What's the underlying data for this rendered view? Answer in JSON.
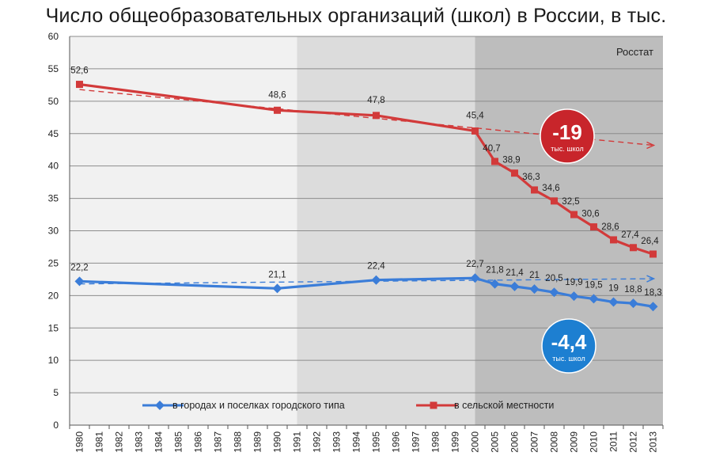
{
  "chart_data": {
    "type": "line",
    "title": "Число общеобразовательных организаций (школ) в России, в тыс.",
    "source": "Росстат",
    "ylim": [
      0,
      60
    ],
    "yticks": [
      0,
      5,
      10,
      15,
      20,
      25,
      30,
      35,
      40,
      45,
      50,
      55,
      60
    ],
    "categories": [
      "1980",
      "1981",
      "1982",
      "1983",
      "1984",
      "1985",
      "1986",
      "1987",
      "1988",
      "1989",
      "1990",
      "1991",
      "1992",
      "1993",
      "1994",
      "1995",
      "1996",
      "1997",
      "1998",
      "1999",
      "2000",
      "2005",
      "2006",
      "2007",
      "2008",
      "2009",
      "2010",
      "2011",
      "2012",
      "2013"
    ],
    "grid": true,
    "legend_position": "bottom",
    "series": [
      {
        "name": "в городах и поселках городского типа",
        "color": "#3b7dd8",
        "marker": "diamond",
        "points": [
          {
            "x": "1980",
            "y": 22.2,
            "label": "22,2"
          },
          {
            "x": "1990",
            "y": 21.1,
            "label": "21,1"
          },
          {
            "x": "1995",
            "y": 22.4,
            "label": "22,4"
          },
          {
            "x": "2000",
            "y": 22.7,
            "label": "22,7"
          },
          {
            "x": "2005",
            "y": 21.8,
            "label": "21,8"
          },
          {
            "x": "2006",
            "y": 21.4,
            "label": "21,4"
          },
          {
            "x": "2007",
            "y": 21.0,
            "label": "21"
          },
          {
            "x": "2008",
            "y": 20.5,
            "label": "20,5"
          },
          {
            "x": "2009",
            "y": 19.9,
            "label": "19,9"
          },
          {
            "x": "2010",
            "y": 19.5,
            "label": "19,5"
          },
          {
            "x": "2011",
            "y": 19.0,
            "label": "19"
          },
          {
            "x": "2012",
            "y": 18.8,
            "label": "18,8"
          },
          {
            "x": "2013",
            "y": 18.3,
            "label": "18,3"
          }
        ],
        "trend": {
          "from": {
            "x": "1980",
            "y": 21.8
          },
          "to": {
            "x": "2013",
            "y": 22.6
          }
        },
        "badge": {
          "value": "-4,4",
          "sub": "тыс. школ",
          "color": "#1d7fd1"
        }
      },
      {
        "name": "в сельской местности",
        "color": "#d23a3a",
        "marker": "square",
        "points": [
          {
            "x": "1980",
            "y": 52.6,
            "label": "52,6"
          },
          {
            "x": "1990",
            "y": 48.6,
            "label": "48,6"
          },
          {
            "x": "1995",
            "y": 47.8,
            "label": "47,8"
          },
          {
            "x": "2000",
            "y": 45.4,
            "label": "45,4"
          },
          {
            "x": "2005",
            "y": 40.7,
            "label": "40,7"
          },
          {
            "x": "2006",
            "y": 38.9,
            "label": "38,9"
          },
          {
            "x": "2007",
            "y": 36.3,
            "label": "36,3"
          },
          {
            "x": "2008",
            "y": 34.6,
            "label": "34,6"
          },
          {
            "x": "2009",
            "y": 32.5,
            "label": "32,5"
          },
          {
            "x": "2010",
            "y": 30.6,
            "label": "30,6"
          },
          {
            "x": "2011",
            "y": 28.6,
            "label": "28,6"
          },
          {
            "x": "2012",
            "y": 27.4,
            "label": "27,4"
          },
          {
            "x": "2013",
            "y": 26.4,
            "label": "26,4"
          }
        ],
        "trend": {
          "from": {
            "x": "1980",
            "y": 51.8
          },
          "to": {
            "x": "2013",
            "y": 43.2
          }
        },
        "badge": {
          "value": "-19",
          "sub": "тыс. школ",
          "color": "#c8252b"
        }
      }
    ],
    "background_bands": [
      {
        "from": "1980",
        "to": "1991",
        "color": "#f1f1f1"
      },
      {
        "from": "1991",
        "to": "2000",
        "color": "#dcdcdc"
      },
      {
        "from": "2000",
        "to": "2013",
        "color": "#bdbdbd"
      }
    ]
  }
}
